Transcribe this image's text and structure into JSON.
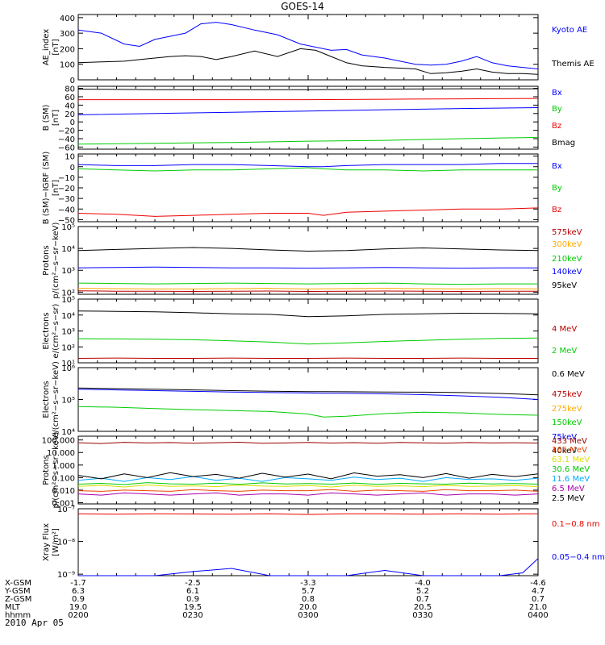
{
  "title": "GOES-14",
  "date": "2010 Apr 05",
  "footer": {
    "rows": [
      {
        "label": "X-GSM",
        "values": [
          "-1.7",
          "-2.5",
          "-3.3",
          "-4.0",
          "-4.6"
        ]
      },
      {
        "label": "Y-GSM",
        "values": [
          "6.3",
          "6.1",
          "5.7",
          "5.2",
          "4.7"
        ]
      },
      {
        "label": "Z-GSM",
        "values": [
          "0.9",
          "0.9",
          "0.8",
          "0.7",
          "0.7"
        ]
      },
      {
        "label": "MLT",
        "values": [
          "19.0",
          "19.5",
          "20.0",
          "20.5",
          "21.0"
        ]
      },
      {
        "label": "hhmm",
        "values": [
          "0200",
          "0230",
          "0300",
          "0330",
          "0400"
        ]
      }
    ]
  },
  "chart_data": [
    {
      "type": "line",
      "ylabel": [
        "AE_index",
        "[nT]"
      ],
      "scale": "linear",
      "ylim": [
        0,
        420
      ],
      "ticks": [
        0,
        100,
        200,
        300,
        400
      ],
      "tick_labels": [
        "0",
        "100",
        "200",
        "300",
        "400"
      ],
      "x": [
        0,
        6,
        12,
        16,
        20,
        24,
        28,
        32,
        36,
        40,
        46,
        52,
        58,
        62,
        66,
        70,
        74,
        80,
        84,
        88,
        92,
        96,
        100,
        104,
        108,
        112,
        116,
        120
      ],
      "series": [
        {
          "name": "Kyoto AE",
          "color": "#0000ff",
          "values": [
            320,
            300,
            230,
            215,
            260,
            280,
            300,
            360,
            370,
            355,
            320,
            290,
            230,
            210,
            190,
            195,
            160,
            140,
            120,
            100,
            95,
            100,
            120,
            150,
            110,
            90,
            80,
            70
          ]
        },
        {
          "name": "Themis AE",
          "color": "#000000",
          "values": [
            110,
            115,
            120,
            130,
            140,
            150,
            155,
            150,
            130,
            150,
            185,
            150,
            200,
            190,
            150,
            110,
            90,
            80,
            75,
            70,
            40,
            45,
            55,
            70,
            50,
            40,
            40,
            35
          ]
        }
      ]
    },
    {
      "type": "line",
      "ylabel": [
        "B (SM)",
        "[nT]"
      ],
      "scale": "linear",
      "ylim": [
        -65,
        85
      ],
      "ticks": [
        -60,
        -40,
        -20,
        0,
        20,
        40,
        60,
        80
      ],
      "tick_labels": [
        "−60",
        "−40",
        "−20",
        "0",
        "20",
        "40",
        "60",
        "80"
      ],
      "x": [
        0,
        20,
        40,
        60,
        80,
        100,
        120
      ],
      "series": [
        {
          "name": "Bx",
          "color": "#0000ff",
          "values": [
            17,
            20,
            23,
            26,
            29,
            32,
            34
          ]
        },
        {
          "name": "By",
          "color": "#00cc00",
          "values": [
            -53,
            -51,
            -49,
            -46,
            -44,
            -40,
            -37
          ]
        },
        {
          "name": "Bz",
          "color": "#ee0000",
          "values": [
            53,
            53,
            53,
            53,
            54,
            55,
            56
          ]
        },
        {
          "name": "Bmag",
          "color": "#000000",
          "values": [
            78,
            77,
            77,
            77,
            78,
            79,
            79
          ]
        }
      ]
    },
    {
      "type": "line",
      "ylabel": [
        "B (SM)−IGRF (SM)",
        "[nT]"
      ],
      "scale": "linear",
      "ylim": [
        -52,
        12
      ],
      "ticks": [
        -50,
        -40,
        -30,
        -20,
        -10,
        0,
        10
      ],
      "tick_labels": [
        "−50",
        "−40",
        "−30",
        "−20",
        "−10",
        "0",
        "10"
      ],
      "x": [
        0,
        10,
        20,
        30,
        40,
        50,
        60,
        64,
        70,
        80,
        90,
        100,
        110,
        120
      ],
      "series": [
        {
          "name": "Bx",
          "color": "#0000ff",
          "values": [
            2,
            1,
            1,
            2,
            2,
            1,
            0,
            0,
            1,
            2,
            2,
            2,
            3,
            3
          ]
        },
        {
          "name": "By",
          "color": "#00cc00",
          "values": [
            -2,
            -3,
            -4,
            -3,
            -3,
            -2,
            -1,
            -2,
            -3,
            -3,
            -4,
            -3,
            -3,
            -3
          ]
        },
        {
          "name": "Bz",
          "color": "#ee0000",
          "values": [
            -44,
            -45,
            -47,
            -46,
            -45,
            -44,
            -44,
            -46,
            -43,
            -42,
            -41,
            -40,
            -40,
            -39
          ]
        }
      ]
    },
    {
      "type": "line",
      "ylabel": [
        "Protons",
        "p/(cm²−s−sr−keV)"
      ],
      "scale": "log",
      "ylim": [
        80,
        100000
      ],
      "ticks": [
        100,
        1000,
        10000,
        100000
      ],
      "tick_labels": [
        "10²",
        "10³",
        "10⁴",
        "10⁵"
      ],
      "x": [
        0,
        10,
        20,
        30,
        40,
        50,
        60,
        70,
        80,
        90,
        100,
        110,
        120
      ],
      "series": [
        {
          "name": "575keV",
          "color": "#bb0000",
          "values": [
            115,
            110,
            110,
            108,
            110,
            112,
            108,
            110,
            112,
            110,
            108,
            110,
            110
          ]
        },
        {
          "name": "300keV",
          "color": "#ffaa00",
          "values": [
            150,
            145,
            140,
            140,
            145,
            150,
            140,
            145,
            150,
            145,
            140,
            145,
            140
          ]
        },
        {
          "name": "210keV",
          "color": "#00cc00",
          "values": [
            260,
            250,
            240,
            250,
            260,
            250,
            240,
            250,
            260,
            240,
            230,
            240,
            240
          ]
        },
        {
          "name": "140keV",
          "color": "#0000ff",
          "values": [
            1300,
            1350,
            1400,
            1350,
            1300,
            1300,
            1250,
            1300,
            1350,
            1300,
            1250,
            1300,
            1300
          ]
        },
        {
          "name": "95keV",
          "color": "#000000",
          "values": [
            8000,
            9000,
            10000,
            11000,
            10000,
            8500,
            7500,
            8000,
            9500,
            10500,
            9500,
            8500,
            8000
          ]
        }
      ]
    },
    {
      "type": "line",
      "ylabel": [
        "Electrons",
        "e/(cm²−s−sr)"
      ],
      "scale": "log",
      "ylim": [
        10,
        100000
      ],
      "ticks": [
        10,
        100,
        1000,
        10000,
        100000
      ],
      "tick_labels": [
        "10¹",
        "10²",
        "10³",
        "10⁴",
        "10⁵"
      ],
      "x": [
        0,
        10,
        20,
        30,
        40,
        50,
        60,
        70,
        80,
        90,
        100,
        110,
        120
      ],
      "series": [
        {
          "name": "4 MeV",
          "color": "#bb0000",
          "values": [
            19,
            20,
            19,
            19,
            20,
            19,
            19,
            20,
            19,
            19,
            20,
            19,
            19
          ]
        },
        {
          "name": "2 MeV",
          "color": "#00cc00",
          "values": [
            330,
            320,
            300,
            280,
            240,
            200,
            150,
            180,
            220,
            260,
            300,
            340,
            360
          ]
        },
        {
          "name": "0.6 MeV",
          "color": "#000000",
          "values": [
            18000,
            17000,
            16000,
            14000,
            12000,
            11000,
            8000,
            9000,
            11000,
            12000,
            13000,
            12500,
            12000
          ]
        }
      ]
    },
    {
      "type": "line",
      "ylabel": [
        "Electrons",
        "e/(cm²−s−sr−keV)"
      ],
      "scale": "log",
      "ylim": [
        10000,
        1000000
      ],
      "ticks": [
        10000,
        100000,
        1000000
      ],
      "tick_labels": [
        "10⁴",
        "10⁵",
        "10⁶"
      ],
      "x": [
        0,
        10,
        20,
        30,
        40,
        50,
        60,
        64,
        70,
        80,
        90,
        100,
        110,
        120
      ],
      "series": [
        {
          "name": "475keV",
          "color": "#bb0000",
          "values": [
            null,
            null,
            null,
            null,
            null,
            null,
            null,
            null,
            null,
            null,
            null,
            null,
            null,
            null
          ]
        },
        {
          "name": "275keV",
          "color": "#ffaa00",
          "values": [
            null,
            null,
            null,
            null,
            null,
            null,
            null,
            null,
            null,
            null,
            null,
            null,
            null,
            null
          ]
        },
        {
          "name": "150keV",
          "color": "#00cc00",
          "values": [
            60000,
            57000,
            52000,
            48000,
            45000,
            42000,
            35000,
            28000,
            30000,
            36000,
            40000,
            38000,
            34000,
            32000
          ]
        },
        {
          "name": "75keV",
          "color": "#0000ff",
          "values": [
            210000,
            200000,
            190000,
            180000,
            172000,
            165000,
            160000,
            158000,
            158000,
            150000,
            142000,
            130000,
            118000,
            100000
          ]
        },
        {
          "name": "40keV",
          "color": "#000000",
          "values": [
            230000,
            220000,
            210000,
            200000,
            190000,
            182000,
            176000,
            176000,
            175000,
            172000,
            170000,
            165000,
            155000,
            140000
          ]
        }
      ]
    },
    {
      "type": "line",
      "ylabel": [
        "Protons",
        "p/(cm²−s−sr−keV)"
      ],
      "scale": "log",
      "ylim": [
        0.0008,
        200
      ],
      "ticks": [
        0.001,
        0.01,
        0.1,
        1,
        10,
        100
      ],
      "tick_labels": [
        "0.001",
        "0.010",
        "0.100",
        "1.000",
        "10.000",
        "100.000"
      ],
      "x": [
        0,
        6,
        12,
        18,
        24,
        30,
        36,
        42,
        48,
        54,
        60,
        66,
        72,
        78,
        84,
        90,
        96,
        102,
        108,
        114,
        120
      ],
      "series": [
        {
          "name": "433 MeV",
          "color": "#990000",
          "values": [
            60,
            52,
            65,
            58,
            62,
            55,
            60,
            66,
            54,
            58,
            63,
            57,
            61,
            55,
            64,
            59,
            56,
            62,
            58,
            60,
            57
          ]
        },
        {
          "name": "165 MeV",
          "color": "#ee4400",
          "values": [
            0.009,
            0.008,
            0.01,
            0.009,
            0.008,
            0.011,
            0.009,
            0.008,
            0.01,
            0.009,
            0.009,
            0.011,
            0.008,
            0.01,
            0.009,
            0.008,
            0.011,
            0.009,
            0.009,
            0.01,
            0.008
          ]
        },
        {
          "name": "63.1 MeV",
          "color": "#dddd00",
          "values": [
            0.02,
            0.024,
            0.018,
            0.026,
            0.02,
            0.022,
            0.019,
            0.025,
            0.021,
            0.02,
            0.023,
            0.018,
            0.025,
            0.02,
            0.022,
            0.019,
            0.024,
            0.02,
            0.021,
            0.023,
            0.019
          ]
        },
        {
          "name": "30.6 MeV",
          "color": "#00cc00",
          "values": [
            0.03,
            0.035,
            0.028,
            0.04,
            0.032,
            0.03,
            0.036,
            0.029,
            0.038,
            0.031,
            0.034,
            0.03,
            0.037,
            0.029,
            0.035,
            0.032,
            0.03,
            0.036,
            0.031,
            0.034,
            0.03
          ]
        },
        {
          "name": "11.6 MeV",
          "color": "#00aaff",
          "values": [
            0.06,
            0.09,
            0.05,
            0.1,
            0.07,
            0.12,
            0.06,
            0.09,
            0.05,
            0.1,
            0.08,
            0.06,
            0.11,
            0.07,
            0.09,
            0.05,
            0.1,
            0.07,
            0.08,
            0.06,
            0.09
          ]
        },
        {
          "name": "6.5 MeV",
          "color": "#aa00aa",
          "values": [
            0.005,
            0.004,
            0.006,
            0.005,
            0.004,
            0.005,
            0.006,
            0.004,
            0.005,
            0.005,
            0.004,
            0.006,
            0.005,
            0.004,
            0.005,
            0.006,
            0.004,
            0.005,
            0.005,
            0.004,
            0.005
          ]
        },
        {
          "name": "2.5 MeV",
          "color": "#000000",
          "values": [
            0.15,
            0.08,
            0.2,
            0.1,
            0.25,
            0.12,
            0.18,
            0.09,
            0.22,
            0.11,
            0.19,
            0.08,
            0.24,
            0.13,
            0.17,
            0.1,
            0.21,
            0.09,
            0.18,
            0.12,
            0.2
          ]
        }
      ]
    },
    {
      "type": "line",
      "ylabel": [
        "Xray Flux",
        "[W/m²]"
      ],
      "scale": "log",
      "ylim": [
        9e-10,
        1e-07
      ],
      "ticks": [
        1e-09,
        1e-08,
        1e-07
      ],
      "tick_labels": [
        "10⁻⁹",
        "10⁻⁸",
        "10⁻⁷"
      ],
      "x": [
        0,
        10,
        20,
        30,
        40,
        50,
        60,
        70,
        80,
        90,
        100,
        110,
        116,
        120
      ],
      "series": [
        {
          "name": "0.1−0.8 nm",
          "color": "#ee0000",
          "values": [
            7e-08,
            6.8e-08,
            7e-08,
            6.9e-08,
            6.8e-08,
            7e-08,
            6.7e-08,
            7e-08,
            7e-08,
            6.8e-08,
            7e-08,
            6.8e-08,
            7e-08,
            7e-08
          ]
        },
        {
          "name": "0.05−0.4 nm",
          "color": "#0000ff",
          "values": [
            9e-10,
            9e-10,
            9e-10,
            1.2e-09,
            1.5e-09,
            9e-10,
            9e-10,
            9e-10,
            1.3e-09,
            9e-10,
            9e-10,
            9e-10,
            1.1e-09,
            3e-09
          ]
        }
      ]
    }
  ]
}
